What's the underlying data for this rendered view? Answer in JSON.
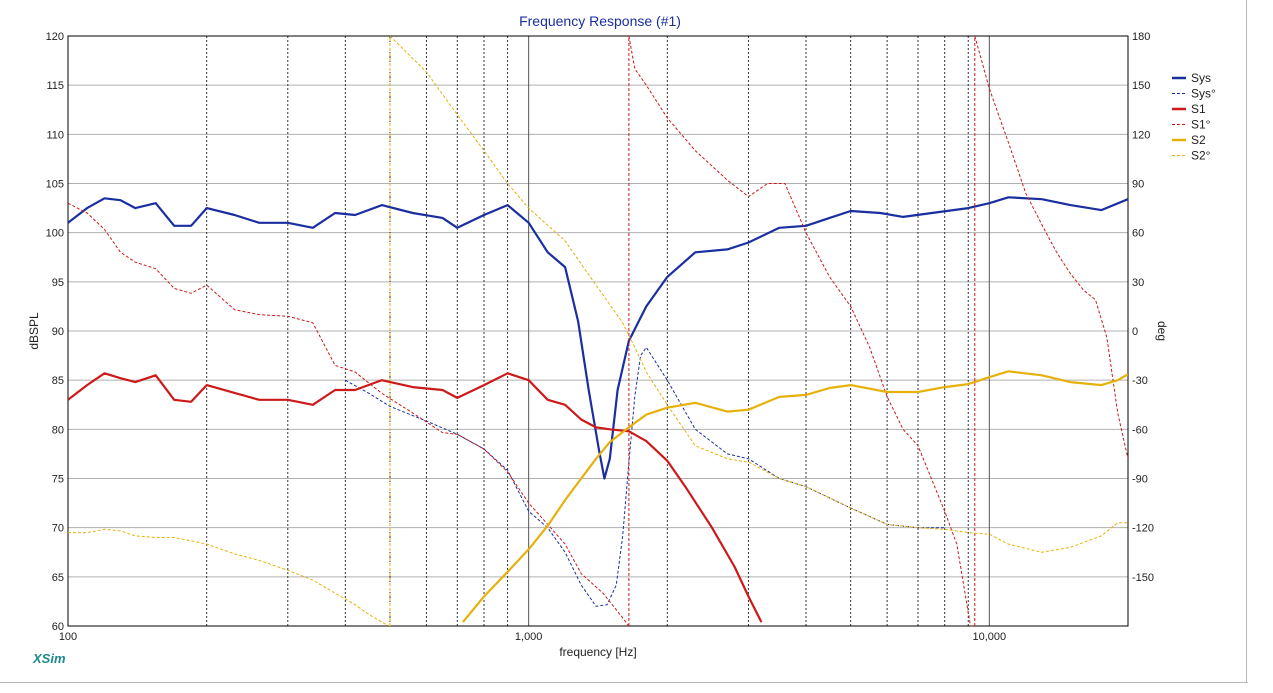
{
  "chart_data": {
    "type": "line",
    "title": "Frequency Response (#1)",
    "xlabel": "frequency [Hz]",
    "ylabel": "dBSPL",
    "y2label": "deg",
    "x_scale": "log",
    "xlim": [
      100,
      20000
    ],
    "ylim": [
      60,
      120
    ],
    "y2lim": [
      -180,
      180
    ],
    "x_tick_labels": [
      {
        "value": 100,
        "label": "100"
      },
      {
        "value": 1000,
        "label": "1,000"
      },
      {
        "value": 10000,
        "label": "10,000"
      }
    ],
    "y_ticks": [
      60,
      65,
      70,
      75,
      80,
      85,
      90,
      95,
      100,
      105,
      110,
      115,
      120
    ],
    "y2_ticks": [
      -150,
      -120,
      -90,
      -60,
      -30,
      0,
      30,
      60,
      90,
      120,
      150,
      180
    ],
    "grid": "on",
    "legend_position": "right",
    "brand": "XSim",
    "series": [
      {
        "name": "Sys",
        "axis": "left",
        "style": "solid",
        "color": "#1a2ea0",
        "points": [
          [
            100,
            101
          ],
          [
            110,
            102.5
          ],
          [
            120,
            103.5
          ],
          [
            130,
            103.3
          ],
          [
            140,
            102.5
          ],
          [
            155,
            103
          ],
          [
            170,
            100.7
          ],
          [
            185,
            100.7
          ],
          [
            200,
            102.5
          ],
          [
            230,
            101.8
          ],
          [
            260,
            101
          ],
          [
            300,
            101
          ],
          [
            340,
            100.5
          ],
          [
            380,
            102
          ],
          [
            420,
            101.8
          ],
          [
            480,
            102.8
          ],
          [
            560,
            102
          ],
          [
            650,
            101.5
          ],
          [
            700,
            100.5
          ],
          [
            800,
            101.8
          ],
          [
            900,
            102.8
          ],
          [
            1000,
            101
          ],
          [
            1100,
            98
          ],
          [
            1200,
            96.5
          ],
          [
            1280,
            91
          ],
          [
            1350,
            84
          ],
          [
            1420,
            78
          ],
          [
            1460,
            75
          ],
          [
            1500,
            77
          ],
          [
            1560,
            84
          ],
          [
            1650,
            89
          ],
          [
            1800,
            92.5
          ],
          [
            2000,
            95.5
          ],
          [
            2300,
            98
          ],
          [
            2700,
            98.3
          ],
          [
            3000,
            99
          ],
          [
            3500,
            100.5
          ],
          [
            4000,
            100.7
          ],
          [
            4500,
            101.5
          ],
          [
            5000,
            102.2
          ],
          [
            5800,
            102
          ],
          [
            6500,
            101.6
          ],
          [
            7500,
            102
          ],
          [
            9000,
            102.5
          ],
          [
            10000,
            103
          ],
          [
            11000,
            103.6
          ],
          [
            13000,
            103.4
          ],
          [
            15000,
            102.8
          ],
          [
            17500,
            102.3
          ],
          [
            20000,
            103.4
          ]
        ]
      },
      {
        "name": "Sys°",
        "axis": "right",
        "style": "dashed",
        "color": "#1a2ea0",
        "points": [
          [
            400,
            -30
          ],
          [
            450,
            -38
          ],
          [
            500,
            -46
          ],
          [
            600,
            -55
          ],
          [
            700,
            -63
          ],
          [
            800,
            -72
          ],
          [
            900,
            -85
          ],
          [
            1000,
            -110
          ],
          [
            1100,
            -120
          ],
          [
            1200,
            -135
          ],
          [
            1300,
            -155
          ],
          [
            1400,
            -168
          ],
          [
            1480,
            -167
          ],
          [
            1550,
            -155
          ],
          [
            1600,
            -125
          ],
          [
            1650,
            -80
          ],
          [
            1700,
            -40
          ],
          [
            1750,
            -15
          ],
          [
            1800,
            -10
          ],
          [
            2000,
            -30
          ],
          [
            2300,
            -60
          ],
          [
            2700,
            -75
          ],
          [
            3000,
            -78
          ],
          [
            3500,
            -90
          ],
          [
            4000,
            -95
          ],
          [
            5000,
            -108
          ],
          [
            6000,
            -118
          ],
          [
            7000,
            -120
          ],
          [
            8000,
            -120
          ]
        ]
      },
      {
        "name": "S1",
        "axis": "left",
        "style": "solid",
        "color": "#cc1a1a",
        "points": [
          [
            100,
            83
          ],
          [
            110,
            84.5
          ],
          [
            120,
            85.7
          ],
          [
            130,
            85.2
          ],
          [
            140,
            84.8
          ],
          [
            155,
            85.5
          ],
          [
            170,
            83
          ],
          [
            185,
            82.8
          ],
          [
            200,
            84.5
          ],
          [
            230,
            83.7
          ],
          [
            260,
            83
          ],
          [
            300,
            83
          ],
          [
            340,
            82.5
          ],
          [
            380,
            84
          ],
          [
            420,
            84
          ],
          [
            480,
            85
          ],
          [
            560,
            84.3
          ],
          [
            650,
            84
          ],
          [
            700,
            83.2
          ],
          [
            800,
            84.5
          ],
          [
            900,
            85.7
          ],
          [
            1000,
            85
          ],
          [
            1100,
            83
          ],
          [
            1200,
            82.5
          ],
          [
            1300,
            81
          ],
          [
            1400,
            80.2
          ],
          [
            1500,
            80
          ],
          [
            1650,
            79.8
          ],
          [
            1800,
            78.8
          ],
          [
            2000,
            76.8
          ],
          [
            2200,
            74
          ],
          [
            2500,
            70
          ],
          [
            2800,
            66
          ],
          [
            3000,
            63
          ],
          [
            3200,
            60.4
          ]
        ]
      },
      {
        "name": "S1°",
        "axis": "right",
        "style": "dashed",
        "color": "#cc1a1a",
        "points": [
          [
            100,
            78
          ],
          [
            110,
            72
          ],
          [
            120,
            62
          ],
          [
            130,
            48
          ],
          [
            140,
            42
          ],
          [
            155,
            38
          ],
          [
            170,
            26
          ],
          [
            185,
            23
          ],
          [
            200,
            28
          ],
          [
            230,
            13
          ],
          [
            260,
            10
          ],
          [
            300,
            9
          ],
          [
            340,
            5
          ],
          [
            380,
            -21
          ],
          [
            420,
            -25
          ],
          [
            480,
            -38
          ],
          [
            560,
            -50
          ],
          [
            650,
            -62
          ],
          [
            700,
            -63
          ],
          [
            800,
            -72
          ],
          [
            900,
            -86
          ],
          [
            1000,
            -105
          ],
          [
            1100,
            -118
          ],
          [
            1200,
            -130
          ],
          [
            1300,
            -148
          ],
          [
            1450,
            -160
          ],
          [
            1600,
            -175
          ],
          [
            1650,
            180
          ],
          [
            1700,
            160
          ],
          [
            1800,
            150
          ],
          [
            2000,
            130
          ],
          [
            2300,
            110
          ],
          [
            2700,
            92
          ],
          [
            3000,
            82
          ],
          [
            3300,
            90
          ],
          [
            3600,
            90
          ],
          [
            4000,
            60
          ],
          [
            4500,
            33
          ],
          [
            5000,
            15
          ],
          [
            5500,
            -10
          ],
          [
            6000,
            -40
          ],
          [
            6500,
            -60
          ],
          [
            7000,
            -70
          ],
          [
            8000,
            -110
          ],
          [
            8500,
            -130
          ],
          [
            9100,
            -180
          ],
          [
            9300,
            180
          ],
          [
            10000,
            148
          ],
          [
            11000,
            115
          ],
          [
            12000,
            84
          ],
          [
            13000,
            65
          ],
          [
            14000,
            48
          ],
          [
            15000,
            35
          ],
          [
            16000,
            25
          ],
          [
            17000,
            19
          ],
          [
            18000,
            -4
          ],
          [
            19000,
            -50
          ],
          [
            20000,
            -78
          ]
        ]
      },
      {
        "name": "S2",
        "axis": "left",
        "style": "solid",
        "color": "#e6b10a",
        "points": [
          [
            720,
            60.4
          ],
          [
            800,
            63
          ],
          [
            900,
            65.5
          ],
          [
            1000,
            67.8
          ],
          [
            1100,
            70.2
          ],
          [
            1200,
            72.8
          ],
          [
            1300,
            75
          ],
          [
            1400,
            77
          ],
          [
            1500,
            78.7
          ],
          [
            1650,
            80.2
          ],
          [
            1800,
            81.5
          ],
          [
            2000,
            82.2
          ],
          [
            2300,
            82.7
          ],
          [
            2700,
            81.8
          ],
          [
            3000,
            82
          ],
          [
            3500,
            83.3
          ],
          [
            4000,
            83.5
          ],
          [
            4500,
            84.2
          ],
          [
            5000,
            84.5
          ],
          [
            6000,
            83.8
          ],
          [
            7000,
            83.8
          ],
          [
            8000,
            84.3
          ],
          [
            9000,
            84.6
          ],
          [
            10000,
            85.3
          ],
          [
            11000,
            85.9
          ],
          [
            13000,
            85.5
          ],
          [
            15000,
            84.8
          ],
          [
            17500,
            84.5
          ],
          [
            19000,
            85
          ],
          [
            20000,
            85.6
          ]
        ]
      },
      {
        "name": "S2°",
        "axis": "right",
        "style": "dashed",
        "color": "#e6b10a",
        "points": [
          [
            100,
            -123
          ],
          [
            110,
            -123
          ],
          [
            120,
            -121
          ],
          [
            130,
            -122
          ],
          [
            140,
            -125
          ],
          [
            155,
            -126
          ],
          [
            170,
            -126
          ],
          [
            185,
            -128
          ],
          [
            200,
            -130
          ],
          [
            230,
            -136
          ],
          [
            260,
            -140
          ],
          [
            300,
            -146
          ],
          [
            340,
            -152
          ],
          [
            380,
            -160
          ],
          [
            420,
            -167
          ],
          [
            450,
            -173
          ],
          [
            490,
            -179
          ],
          [
            500,
            180
          ],
          [
            600,
            158
          ],
          [
            700,
            132
          ],
          [
            800,
            110
          ],
          [
            900,
            90
          ],
          [
            1000,
            75
          ],
          [
            1200,
            55
          ],
          [
            1400,
            28
          ],
          [
            1600,
            5
          ],
          [
            1700,
            -10
          ],
          [
            1800,
            -25
          ],
          [
            2000,
            -45
          ],
          [
            2300,
            -70
          ],
          [
            2700,
            -78
          ],
          [
            3000,
            -80
          ],
          [
            3500,
            -90
          ],
          [
            4000,
            -95
          ],
          [
            5000,
            -108
          ],
          [
            6000,
            -118
          ],
          [
            7000,
            -120
          ],
          [
            8000,
            -121
          ],
          [
            9000,
            -123
          ],
          [
            10000,
            -124
          ],
          [
            11000,
            -130
          ],
          [
            13000,
            -135
          ],
          [
            15000,
            -132
          ],
          [
            17500,
            -125
          ],
          [
            19000,
            -117
          ],
          [
            20000,
            -117
          ]
        ]
      }
    ]
  }
}
